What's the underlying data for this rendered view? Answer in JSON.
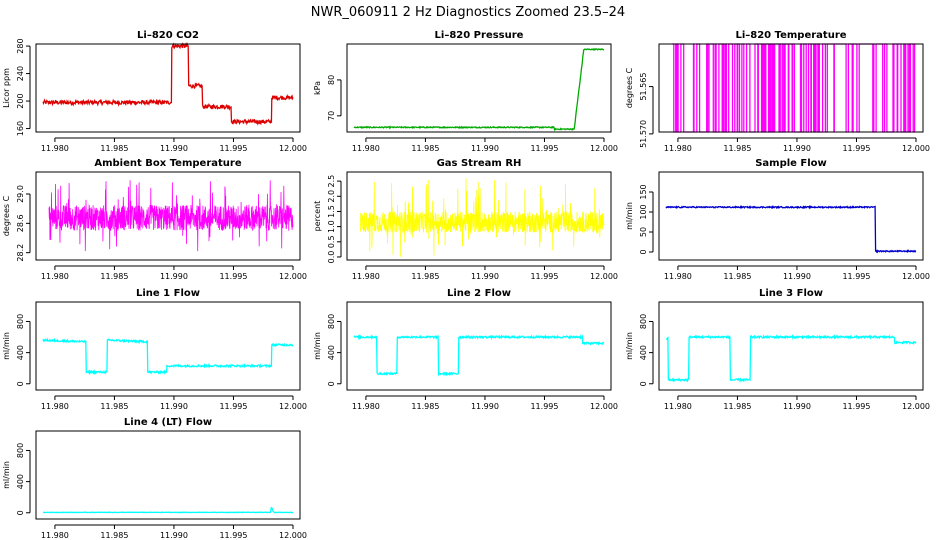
{
  "figure": {
    "title": "NWR_060911  2 Hz Diagnostics Zoomed 23.5–24"
  },
  "chart_data": [
    {
      "type": "line",
      "title": "Li–820 CO2",
      "ylabel": "Licor ppm",
      "xlim": [
        11.979,
        12.0
      ],
      "ylim": [
        155,
        283
      ],
      "yticks": [
        160,
        200,
        240,
        280
      ],
      "xticks": [
        "11.980",
        "11.985",
        "11.990",
        "11.995",
        "12.000"
      ],
      "color": "#dd0000",
      "series": [
        {
          "x": [
            11.979,
            11.9898,
            11.9898,
            11.9912,
            11.9912,
            11.9924,
            11.9924,
            11.9948,
            11.9948,
            11.9982,
            11.9982,
            12.0
          ],
          "y": [
            198,
            198,
            280,
            280,
            222,
            222,
            192,
            192,
            170,
            170,
            205,
            205
          ]
        }
      ],
      "noise": 3
    },
    {
      "type": "line",
      "title": "Li–820 Pressure",
      "ylabel": "kPa",
      "xlim": [
        11.979,
        12.0
      ],
      "ylim": [
        65.5,
        90
      ],
      "yticks": [
        70,
        80
      ],
      "xticks": [
        "11.980",
        "11.985",
        "11.990",
        "11.995",
        "12.000"
      ],
      "color": "#00aa00",
      "series": [
        {
          "x": [
            11.979,
            11.9958,
            11.9958,
            11.9975,
            11.9977,
            11.998,
            11.9983,
            12.0
          ],
          "y": [
            66.8,
            66.8,
            66.3,
            66.3,
            72,
            80,
            88.5,
            88.5
          ]
        }
      ],
      "noise": 0.15
    },
    {
      "type": "line",
      "title": "Li–820 Temperature",
      "ylabel": "degrees C",
      "xlim": [
        11.979,
        12.0
      ],
      "ylim": [
        51.5698,
        51.5605
      ],
      "yticks": [
        51.57,
        51.565
      ],
      "ytick_labels": [
        "51.570",
        "51.565"
      ],
      "xticks": [
        "11.980",
        "11.985",
        "11.990",
        "11.995",
        "12.000"
      ],
      "color": "#ff00ff",
      "levels": [
        51.5698,
        51.5605
      ],
      "switch_density": 0.55
    },
    {
      "type": "line",
      "title": "Ambient Box Temperature",
      "ylabel": "degrees C",
      "xlim": [
        11.979,
        12.0
      ],
      "ylim": [
        28.1,
        29.3
      ],
      "yticks": [
        28.2,
        28.6,
        29.0
      ],
      "ytick_labels": [
        "28.2",
        "28.6",
        "29.0"
      ],
      "xticks": [
        "11.980",
        "11.985",
        "11.990",
        "11.995",
        "12.000"
      ],
      "color": "#ff00ff",
      "band": [
        28.5,
        28.85
      ],
      "spike_range": [
        28.2,
        29.2
      ]
    },
    {
      "type": "line",
      "title": "Gas Stream RH",
      "ylabel": "percent",
      "xlim": [
        11.979,
        12.0
      ],
      "ylim": [
        -0.1,
        2.8
      ],
      "yticks": [
        0.0,
        0.5,
        1.0,
        1.5,
        2.0,
        2.5
      ],
      "ytick_labels": [
        "0.0",
        "0.5",
        "1.0",
        "1.5",
        "2.0",
        "2.5"
      ],
      "xticks": [
        "11.980",
        "11.985",
        "11.990",
        "11.995",
        "12.000"
      ],
      "color": "#ffff00",
      "band": [
        0.8,
        1.5
      ],
      "spike_range": [
        0.0,
        2.6
      ]
    },
    {
      "type": "line",
      "title": "Sample Flow",
      "ylabel": "ml/min",
      "xlim": [
        11.979,
        12.0
      ],
      "ylim": [
        -20,
        200
      ],
      "yticks": [
        0,
        50,
        100,
        150
      ],
      "xticks": [
        "11.980",
        "11.985",
        "11.990",
        "11.995",
        "12.000"
      ],
      "color": "#0000cc",
      "series": [
        {
          "x": [
            11.979,
            11.9966,
            11.9966,
            12.0
          ],
          "y": [
            112,
            112,
            2,
            2
          ]
        }
      ],
      "noise": 1.5
    },
    {
      "type": "line",
      "title": "Line 1 Flow",
      "ylabel": "ml/min",
      "xlim": [
        11.979,
        12.0
      ],
      "ylim": [
        -80,
        1050
      ],
      "yticks": [
        0,
        400,
        800
      ],
      "xticks": [
        "11.980",
        "11.985",
        "11.990",
        "11.995",
        "12.000"
      ],
      "color": "#00ffff",
      "series": [
        {
          "x": [
            11.979,
            11.9826,
            11.9826,
            11.9844,
            11.9844,
            11.9878,
            11.9878,
            11.9894,
            11.9894,
            11.9982,
            11.9982,
            12.0
          ],
          "y": [
            560,
            540,
            150,
            150,
            560,
            540,
            150,
            150,
            230,
            230,
            500,
            500
          ]
        }
      ],
      "noise": 12
    },
    {
      "type": "line",
      "title": "Line 2 Flow",
      "ylabel": "ml/min",
      "xlim": [
        11.979,
        12.0
      ],
      "ylim": [
        -80,
        1050
      ],
      "yticks": [
        0,
        400,
        800
      ],
      "xticks": [
        "11.980",
        "11.985",
        "11.990",
        "11.995",
        "12.000"
      ],
      "color": "#00ffff",
      "series": [
        {
          "x": [
            11.979,
            11.9809,
            11.9809,
            11.9826,
            11.9826,
            11.9861,
            11.9861,
            11.9878,
            11.9878,
            11.9982,
            11.9982,
            12.0
          ],
          "y": [
            600,
            600,
            130,
            130,
            600,
            600,
            130,
            130,
            600,
            600,
            520,
            520
          ]
        }
      ],
      "noise": 12
    },
    {
      "type": "line",
      "title": "Line 3 Flow",
      "ylabel": "ml/min",
      "xlim": [
        11.979,
        12.0
      ],
      "ylim": [
        -80,
        1050
      ],
      "yticks": [
        0,
        400,
        800
      ],
      "xticks": [
        "11.980",
        "11.985",
        "11.990",
        "11.995",
        "12.000"
      ],
      "color": "#00ffff",
      "series": [
        {
          "x": [
            11.979,
            11.9792,
            11.9792,
            11.9809,
            11.9809,
            11.9844,
            11.9844,
            11.9861,
            11.9861,
            11.9982,
            11.9982,
            12.0
          ],
          "y": [
            580,
            580,
            50,
            50,
            600,
            600,
            50,
            50,
            600,
            600,
            530,
            530
          ]
        }
      ],
      "noise": 12
    },
    {
      "type": "line",
      "title": "Line 4 (LT) Flow",
      "ylabel": "ml/min",
      "xlim": [
        11.979,
        12.0
      ],
      "ylim": [
        -80,
        1050
      ],
      "yticks": [
        0,
        400,
        800
      ],
      "xticks": [
        "11.980",
        "11.985",
        "11.990",
        "11.995",
        "12.000"
      ],
      "color": "#00ffff",
      "series": [
        {
          "x": [
            11.979,
            11.9981,
            11.9982,
            11.9983,
            11.9984,
            12.0
          ],
          "y": [
            5,
            5,
            80,
            30,
            5,
            5
          ]
        }
      ],
      "noise": 3
    }
  ]
}
